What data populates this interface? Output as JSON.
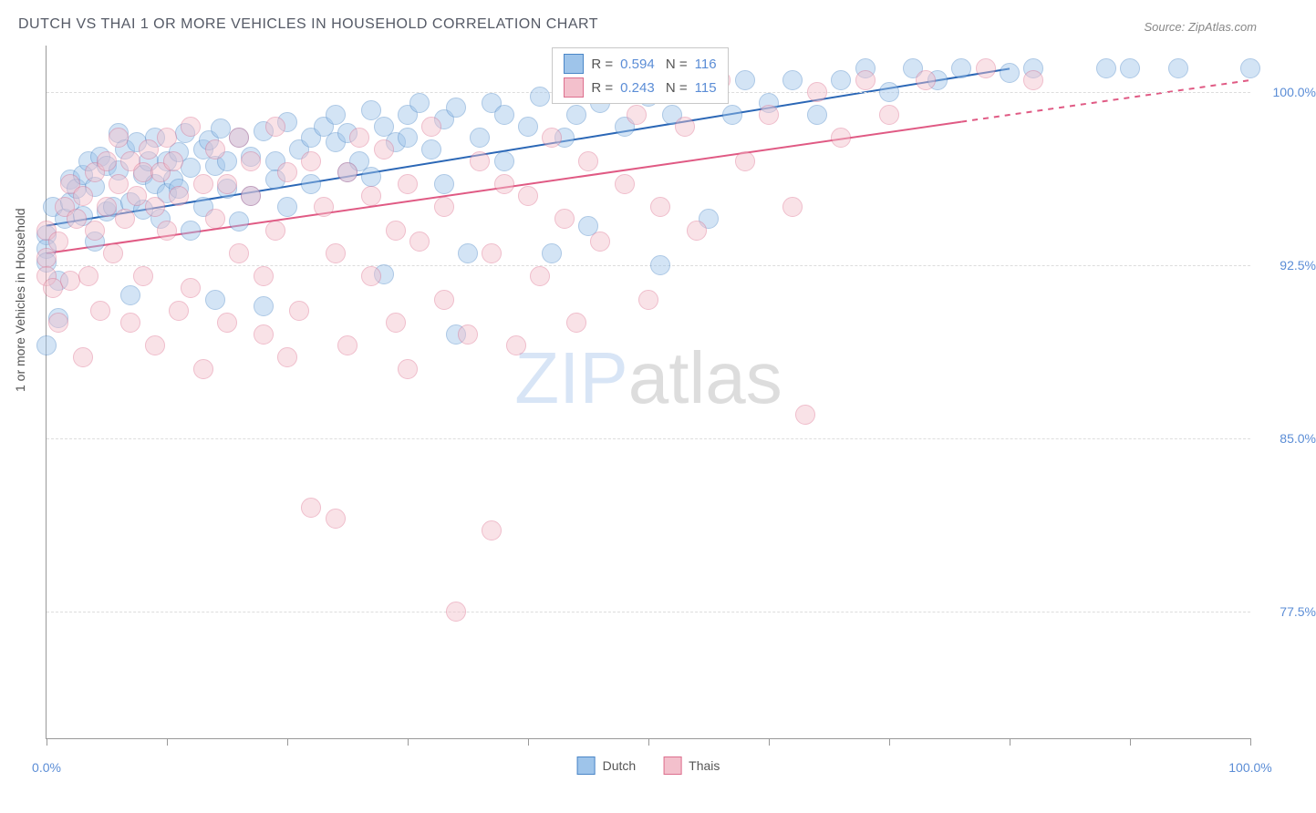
{
  "title": "DUTCH VS THAI 1 OR MORE VEHICLES IN HOUSEHOLD CORRELATION CHART",
  "source": "Source: ZipAtlas.com",
  "ylabel": "1 or more Vehicles in Household",
  "watermark": {
    "part1": "ZIP",
    "part2": "atlas"
  },
  "chart": {
    "type": "scatter",
    "background_color": "#ffffff",
    "grid_color": "#dddddd",
    "grid_dash": "4,4",
    "axis_color": "#999999",
    "label_color": "#5b8dd6",
    "title_color": "#555a66",
    "title_fontsize": 16,
    "label_fontsize": 14,
    "xlim": [
      0,
      100
    ],
    "ylim": [
      72,
      102
    ],
    "xticks": [
      0,
      10,
      20,
      30,
      40,
      50,
      60,
      70,
      80,
      90,
      100
    ],
    "xticks_labeled": [
      0,
      100
    ],
    "xticks_labels": [
      "0.0%",
      "100.0%"
    ],
    "yticks": [
      77.5,
      85.0,
      92.5,
      100.0
    ],
    "yticks_labels": [
      "77.5%",
      "85.0%",
      "92.5%",
      "100.0%"
    ],
    "marker_radius": 10,
    "marker_opacity": 0.45,
    "marker_stroke_width": 1.2,
    "line_width": 2
  },
  "series": [
    {
      "name": "Dutch",
      "fill_color": "#9ec4ea",
      "stroke_color": "#4a86c7",
      "line_color": "#2b67b6",
      "R": "0.594",
      "N": "116",
      "line": {
        "x1": 0,
        "y1": 94.2,
        "x2": 80,
        "y2": 101.0,
        "x_solid_max": 80,
        "x_dash_max": 80
      },
      "points": [
        [
          0,
          93.8
        ],
        [
          0,
          93.2
        ],
        [
          0,
          92.6
        ],
        [
          0,
          89.0
        ],
        [
          0.5,
          95.0
        ],
        [
          1,
          90.2
        ],
        [
          1,
          91.8
        ],
        [
          1.5,
          94.5
        ],
        [
          2,
          95.2
        ],
        [
          2,
          96.2
        ],
        [
          2.5,
          95.8
        ],
        [
          3,
          96.4
        ],
        [
          3,
          94.6
        ],
        [
          3.5,
          97.0
        ],
        [
          4,
          95.9
        ],
        [
          4,
          93.5
        ],
        [
          4.5,
          97.2
        ],
        [
          5,
          94.8
        ],
        [
          5,
          96.8
        ],
        [
          5.5,
          95.0
        ],
        [
          6,
          96.6
        ],
        [
          6,
          98.2
        ],
        [
          6.5,
          97.5
        ],
        [
          7,
          95.2
        ],
        [
          7,
          91.2
        ],
        [
          7.5,
          97.8
        ],
        [
          8,
          96.4
        ],
        [
          8,
          94.9
        ],
        [
          8.5,
          97.0
        ],
        [
          9,
          96.0
        ],
        [
          9,
          98.0
        ],
        [
          9.5,
          94.5
        ],
        [
          10,
          95.6
        ],
        [
          10,
          97.0
        ],
        [
          10.5,
          96.2
        ],
        [
          11,
          97.4
        ],
        [
          11,
          95.8
        ],
        [
          11.5,
          98.2
        ],
        [
          12,
          94.0
        ],
        [
          12,
          96.7
        ],
        [
          13,
          97.5
        ],
        [
          13,
          95.0
        ],
        [
          13.5,
          97.9
        ],
        [
          14,
          96.8
        ],
        [
          14,
          91.0
        ],
        [
          14.5,
          98.4
        ],
        [
          15,
          97.0
        ],
        [
          15,
          95.8
        ],
        [
          16,
          94.4
        ],
        [
          16,
          98.0
        ],
        [
          17,
          97.2
        ],
        [
          17,
          95.5
        ],
        [
          18,
          90.7
        ],
        [
          18,
          98.3
        ],
        [
          19,
          97.0
        ],
        [
          19,
          96.2
        ],
        [
          20,
          95.0
        ],
        [
          20,
          98.7
        ],
        [
          21,
          97.5
        ],
        [
          22,
          98.0
        ],
        [
          22,
          96.0
        ],
        [
          23,
          98.5
        ],
        [
          24,
          97.8
        ],
        [
          24,
          99.0
        ],
        [
          25,
          96.5
        ],
        [
          25,
          98.2
        ],
        [
          26,
          97.0
        ],
        [
          27,
          99.2
        ],
        [
          27,
          96.3
        ],
        [
          28,
          98.5
        ],
        [
          28,
          92.1
        ],
        [
          29,
          97.8
        ],
        [
          30,
          99.0
        ],
        [
          30,
          98.0
        ],
        [
          31,
          99.5
        ],
        [
          32,
          97.5
        ],
        [
          33,
          96.0
        ],
        [
          33,
          98.8
        ],
        [
          34,
          99.3
        ],
        [
          34,
          89.5
        ],
        [
          35,
          93.0
        ],
        [
          36,
          98.0
        ],
        [
          37,
          99.5
        ],
        [
          38,
          97.0
        ],
        [
          38,
          99.0
        ],
        [
          40,
          98.5
        ],
        [
          41,
          99.8
        ],
        [
          42,
          93.0
        ],
        [
          43,
          98.0
        ],
        [
          44,
          99.0
        ],
        [
          45,
          94.2
        ],
        [
          46,
          99.5
        ],
        [
          48,
          98.5
        ],
        [
          50,
          99.8
        ],
        [
          51,
          92.5
        ],
        [
          52,
          99.0
        ],
        [
          54,
          100.5
        ],
        [
          55,
          94.5
        ],
        [
          57,
          99.0
        ],
        [
          58,
          100.5
        ],
        [
          60,
          99.5
        ],
        [
          62,
          100.5
        ],
        [
          64,
          99.0
        ],
        [
          66,
          100.5
        ],
        [
          68,
          101.0
        ],
        [
          70,
          100.0
        ],
        [
          72,
          101.0
        ],
        [
          74,
          100.5
        ],
        [
          76,
          101.0
        ],
        [
          80,
          100.8
        ],
        [
          82,
          101.0
        ],
        [
          88,
          101.0
        ],
        [
          90,
          101.0
        ],
        [
          94,
          101.0
        ],
        [
          100,
          101.0
        ]
      ]
    },
    {
      "name": "Thais",
      "fill_color": "#f3c0cc",
      "stroke_color": "#dd6f8e",
      "line_color": "#e05a84",
      "R": "0.243",
      "N": "115",
      "line": {
        "x1": 0,
        "y1": 93.0,
        "x2": 100,
        "y2": 100.5,
        "x_solid_max": 76,
        "x_dash_max": 100
      },
      "points": [
        [
          0,
          92.8
        ],
        [
          0,
          92.0
        ],
        [
          0,
          94.0
        ],
        [
          0.5,
          91.5
        ],
        [
          1,
          93.5
        ],
        [
          1,
          90.0
        ],
        [
          1.5,
          95.0
        ],
        [
          2,
          91.8
        ],
        [
          2,
          96.0
        ],
        [
          2.5,
          94.5
        ],
        [
          3,
          88.5
        ],
        [
          3,
          95.5
        ],
        [
          3.5,
          92.0
        ],
        [
          4,
          96.5
        ],
        [
          4,
          94.0
        ],
        [
          4.5,
          90.5
        ],
        [
          5,
          97.0
        ],
        [
          5,
          95.0
        ],
        [
          5.5,
          93.0
        ],
        [
          6,
          96.0
        ],
        [
          6,
          98.0
        ],
        [
          6.5,
          94.5
        ],
        [
          7,
          90.0
        ],
        [
          7,
          97.0
        ],
        [
          7.5,
          95.5
        ],
        [
          8,
          96.5
        ],
        [
          8,
          92.0
        ],
        [
          8.5,
          97.5
        ],
        [
          9,
          89.0
        ],
        [
          9,
          95.0
        ],
        [
          9.5,
          96.5
        ],
        [
          10,
          98.0
        ],
        [
          10,
          94.0
        ],
        [
          10.5,
          97.0
        ],
        [
          11,
          95.5
        ],
        [
          11,
          90.5
        ],
        [
          12,
          91.5
        ],
        [
          12,
          98.5
        ],
        [
          13,
          96.0
        ],
        [
          13,
          88.0
        ],
        [
          14,
          97.5
        ],
        [
          14,
          94.5
        ],
        [
          15,
          96.0
        ],
        [
          15,
          90.0
        ],
        [
          16,
          98.0
        ],
        [
          16,
          93.0
        ],
        [
          17,
          95.5
        ],
        [
          17,
          97.0
        ],
        [
          18,
          92.0
        ],
        [
          18,
          89.5
        ],
        [
          19,
          98.5
        ],
        [
          19,
          94.0
        ],
        [
          20,
          96.5
        ],
        [
          20,
          88.5
        ],
        [
          21,
          90.5
        ],
        [
          22,
          97.0
        ],
        [
          22,
          82.0
        ],
        [
          23,
          95.0
        ],
        [
          24,
          93.0
        ],
        [
          24,
          81.5
        ],
        [
          25,
          96.5
        ],
        [
          25,
          89.0
        ],
        [
          26,
          98.0
        ],
        [
          27,
          92.0
        ],
        [
          27,
          95.5
        ],
        [
          28,
          97.5
        ],
        [
          29,
          90.0
        ],
        [
          29,
          94.0
        ],
        [
          30,
          96.0
        ],
        [
          30,
          88.0
        ],
        [
          31,
          93.5
        ],
        [
          32,
          98.5
        ],
        [
          33,
          91.0
        ],
        [
          33,
          95.0
        ],
        [
          34,
          77.5
        ],
        [
          35,
          89.5
        ],
        [
          36,
          97.0
        ],
        [
          37,
          81.0
        ],
        [
          37,
          93.0
        ],
        [
          38,
          96.0
        ],
        [
          39,
          89.0
        ],
        [
          40,
          95.5
        ],
        [
          41,
          92.0
        ],
        [
          42,
          98.0
        ],
        [
          43,
          94.5
        ],
        [
          44,
          90.0
        ],
        [
          45,
          97.0
        ],
        [
          46,
          93.5
        ],
        [
          48,
          96.0
        ],
        [
          49,
          99.0
        ],
        [
          50,
          91.0
        ],
        [
          51,
          95.0
        ],
        [
          53,
          98.5
        ],
        [
          54,
          94.0
        ],
        [
          56,
          100.5
        ],
        [
          58,
          97.0
        ],
        [
          60,
          99.0
        ],
        [
          62,
          95.0
        ],
        [
          63,
          86.0
        ],
        [
          64,
          100.0
        ],
        [
          66,
          98.0
        ],
        [
          68,
          100.5
        ],
        [
          70,
          99.0
        ],
        [
          73,
          100.5
        ],
        [
          78,
          101.0
        ],
        [
          82,
          100.5
        ]
      ]
    }
  ],
  "legend_bottom": [
    {
      "label": "Dutch",
      "fill": "#9ec4ea",
      "stroke": "#4a86c7"
    },
    {
      "label": "Thais",
      "fill": "#f3c0cc",
      "stroke": "#dd6f8e"
    }
  ]
}
